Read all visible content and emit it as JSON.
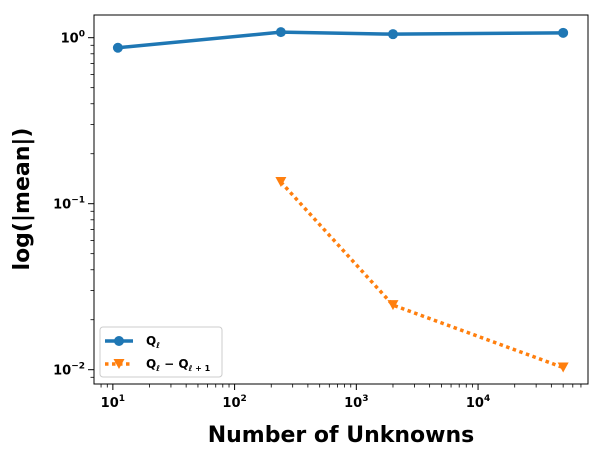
{
  "chart_data": {
    "type": "line",
    "xlabel": "Number of Unknowns",
    "ylabel": "log(|mean|)",
    "xscale": "log",
    "yscale": "log",
    "xlim": [
      7,
      80000
    ],
    "ylim": [
      0.0082,
      1.37
    ],
    "x_ticks": [
      {
        "value": 10,
        "base": "10",
        "exp": "1"
      },
      {
        "value": 100,
        "base": "10",
        "exp": "2"
      },
      {
        "value": 1000,
        "base": "10",
        "exp": "3"
      },
      {
        "value": 10000,
        "base": "10",
        "exp": "4"
      }
    ],
    "y_ticks": [
      {
        "value": 0.01,
        "base": "10",
        "exp": "−2"
      },
      {
        "value": 0.1,
        "base": "10",
        "exp": "−1"
      },
      {
        "value": 1,
        "base": "10",
        "exp": "0"
      }
    ],
    "grid": false,
    "legend_position": "lower-left",
    "series": [
      {
        "name": "Qℓ",
        "legend_main": "Q",
        "legend_sub": "ℓ",
        "color": "#1f77b4",
        "linestyle": "solid",
        "marker": "circle",
        "x": [
          11,
          240,
          2000,
          50000
        ],
        "y": [
          0.87,
          1.08,
          1.05,
          1.07
        ]
      },
      {
        "name": "Qℓ − Qℓ+1",
        "legend_main": "Q",
        "legend_sub": "ℓ",
        "legend_mid": " − Q",
        "legend_sub2": "ℓ + 1",
        "color": "#ff7f0e",
        "linestyle": "dotted",
        "marker": "triangle-down",
        "x": [
          240,
          2000,
          50000
        ],
        "y": [
          0.135,
          0.0245,
          0.0103
        ]
      }
    ]
  }
}
